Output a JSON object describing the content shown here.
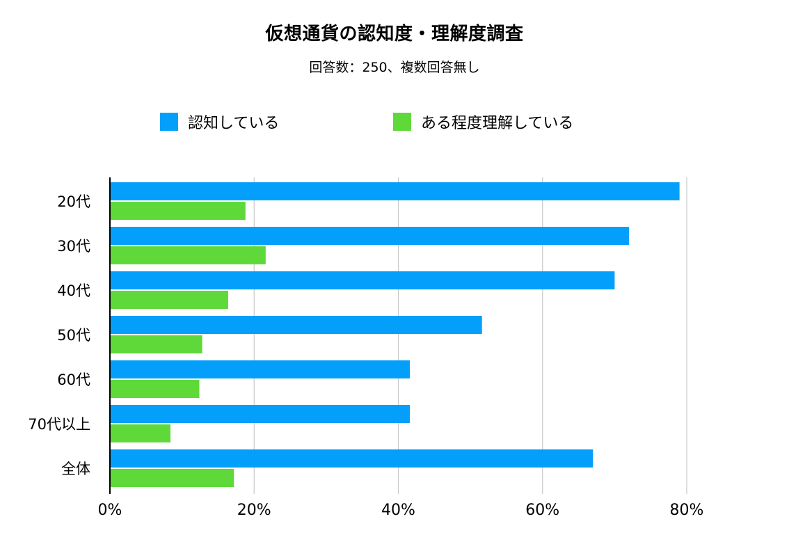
{
  "title": "仮想通貨の認知度・理解度調査",
  "subtitle": "回答数：250、複数回答無し",
  "legend": [
    {
      "label": "認知している",
      "color": "#049ffb"
    },
    {
      "label": "ある程度理解している",
      "color": "#5fd93a"
    }
  ],
  "chart_data": {
    "type": "bar",
    "orientation": "horizontal",
    "title": "仮想通貨の認知度・理解度調査",
    "subtitle": "回答数：250、複数回答無し",
    "categories": [
      "20代",
      "30代",
      "40代",
      "50代",
      "60代",
      "70代以上",
      "全体"
    ],
    "series": [
      {
        "name": "認知している",
        "color": "#049ffb",
        "values": [
          79,
          72,
          70,
          51.6,
          41.6,
          41.6,
          67
        ]
      },
      {
        "name": "ある程度理解している",
        "color": "#5fd93a",
        "values": [
          18.8,
          21.6,
          16.4,
          12.8,
          12.4,
          8.4,
          17.2
        ]
      }
    ],
    "xlim": [
      0,
      80
    ],
    "xticks": [
      0,
      20,
      40,
      60,
      80
    ],
    "xtick_labels": [
      "0%",
      "20%",
      "40%",
      "60%",
      "80%"
    ],
    "grid": true,
    "legend_position": "top"
  }
}
